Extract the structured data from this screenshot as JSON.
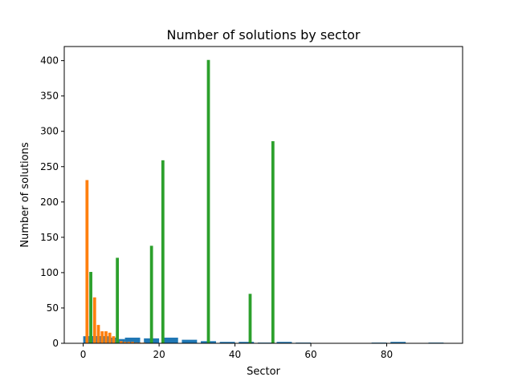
{
  "chart_data": {
    "type": "bar",
    "title": "Number of solutions by sector",
    "xlabel": "Sector",
    "ylabel": "Number of solutions",
    "xlim": [
      -5,
      100
    ],
    "ylim": [
      0,
      420
    ],
    "xticks": [
      0,
      20,
      40,
      60,
      80
    ],
    "yticks": [
      0,
      50,
      100,
      150,
      200,
      250,
      300,
      350,
      400
    ],
    "grid": false,
    "legend": "none",
    "series": [
      {
        "color": "#1f77b4",
        "bar_width": 4,
        "x": [
          2,
          3,
          4,
          5,
          7,
          9,
          13,
          18,
          23,
          28,
          33,
          38,
          43,
          48,
          53,
          58,
          78,
          83,
          93
        ],
        "values": [
          10,
          10,
          10,
          10,
          8,
          6,
          8,
          7,
          8,
          5,
          3,
          2,
          2,
          1,
          2,
          1,
          1,
          2,
          1
        ]
      },
      {
        "color": "#ff7f0e",
        "bar_width": 0.8,
        "x": [
          1,
          2,
          3,
          4,
          5,
          6,
          7,
          8,
          9,
          10,
          11,
          12,
          13,
          14,
          15,
          16
        ],
        "values": [
          231,
          10,
          65,
          26,
          17,
          17,
          15,
          10,
          5,
          3,
          2,
          2,
          2,
          1,
          1,
          1
        ]
      },
      {
        "color": "#2ca02c",
        "bar_width": 0.8,
        "x": [
          2,
          9,
          18,
          21,
          33,
          44,
          50
        ],
        "values": [
          101,
          121,
          138,
          259,
          401,
          70,
          286
        ]
      }
    ]
  }
}
